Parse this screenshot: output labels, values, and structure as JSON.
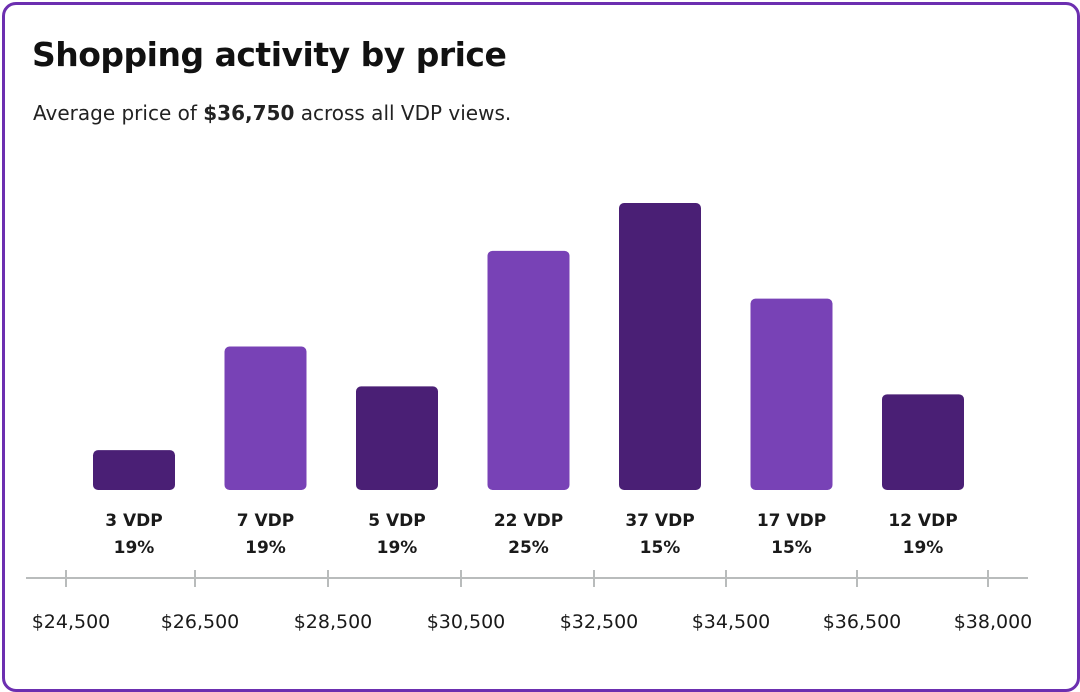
{
  "header": {
    "title": "Shopping activity by price",
    "subtitle_prefix": "Average price of ",
    "subtitle_value": "$36,750",
    "subtitle_suffix": " across all VDP views."
  },
  "colors": {
    "border": "#6c2fb0",
    "dark_bar": "#4a1f75",
    "light_bar": "#7842b6",
    "axis": "#b9bcbc"
  },
  "chart_data": {
    "type": "bar",
    "title": "Shopping activity by price",
    "categories": [
      "3 VDP",
      "7 VDP",
      "5 VDP",
      "22 VDP",
      "37 VDP",
      "17 VDP",
      "12 VDP"
    ],
    "values": [
      5,
      18,
      13,
      30,
      36,
      24,
      12
    ],
    "percent_labels": [
      "19%",
      "19%",
      "19%",
      "25%",
      "15%",
      "15%",
      "19%"
    ],
    "bar_colors": [
      "dark",
      "light",
      "dark",
      "light",
      "dark",
      "light",
      "dark"
    ],
    "x_ticks": [
      "$24,500",
      "$26,500",
      "$28,500",
      "$30,500",
      "$32,500",
      "$34,500",
      "$36,500",
      "$38,000"
    ],
    "xlabel": "",
    "ylabel": "",
    "grid": false,
    "legend": "none"
  }
}
